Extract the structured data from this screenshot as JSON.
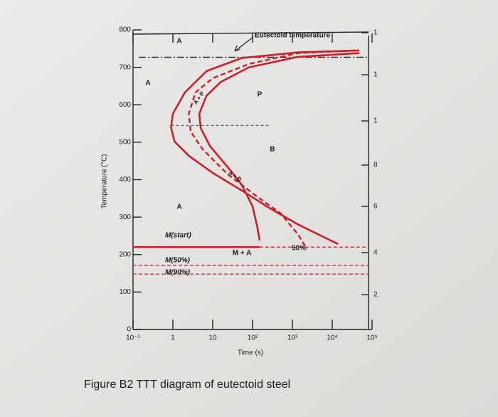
{
  "chart_data": {
    "type": "ttt",
    "caption": "Figure B2 TTT diagram of eutectoid steel",
    "xlabel": "Time (s)",
    "ylabel": "Temperature (°C)",
    "log_x": true,
    "xlim": [
      0.1,
      100000
    ],
    "xticks": [
      {
        "value": 0.1,
        "label": "10⁻¹"
      },
      1,
      10,
      {
        "value": 100,
        "label": "10²"
      },
      {
        "value": 1000,
        "label": "10³"
      },
      {
        "value": 10000,
        "label": "10⁴"
      },
      {
        "value": 100000,
        "label": "10⁵"
      }
    ],
    "ylim": [
      0,
      800
    ],
    "yticks": [
      0,
      100,
      200,
      300,
      400,
      500,
      600,
      700,
      800
    ],
    "series": [
      {
        "color": "#c8202a",
        "style": "solid",
        "x": [
          48000,
          1400,
          54,
          7,
          2,
          1,
          0.9,
          1.1,
          2.5,
          10,
          54,
          280,
          1400,
          14000
        ],
        "values": [
          745,
          740,
          725,
          690,
          633,
          576,
          540,
          502,
          464,
          418,
          371,
          323,
          280,
          228
        ]
      },
      {
        "color": "#c8202a",
        "style": "dashed",
        "x": [
          38000,
          1400,
          81,
          10,
          3.7,
          2.5,
          2.8,
          5.6,
          24,
          122,
          510,
          1400,
          2300
        ],
        "values": [
          745,
          738,
          709,
          671,
          633,
          576,
          529,
          481,
          414,
          357,
          310,
          253,
          215
        ]
      },
      {
        "color": "#c8202a",
        "style": "solid",
        "x": [
          48000,
          1400,
          81,
          16,
          7,
          4.6,
          5,
          8.5,
          24,
          54,
          100,
          133,
          150
        ],
        "values": [
          738,
          728,
          700,
          661,
          624,
          576,
          538,
          490,
          433,
          386,
          329,
          272,
          238
        ]
      }
    ],
    "reference_lines": [
      {
        "label": "Eutectoid temperature",
        "value": 727
      },
      {
        "value": 545
      },
      {
        "label": "M(start)",
        "value": 220
      },
      {
        "label": "M(50%)",
        "value": 171
      },
      {
        "label": "M(90%)",
        "value": 148
      }
    ],
    "annotations": [
      "A",
      "A",
      "A",
      "P",
      "B",
      "M + A",
      "50%",
      "A + P",
      "A + B"
    ],
    "right_axis_labels": [
      "1",
      "1",
      "1",
      "8",
      "6",
      "4",
      "2"
    ]
  }
}
